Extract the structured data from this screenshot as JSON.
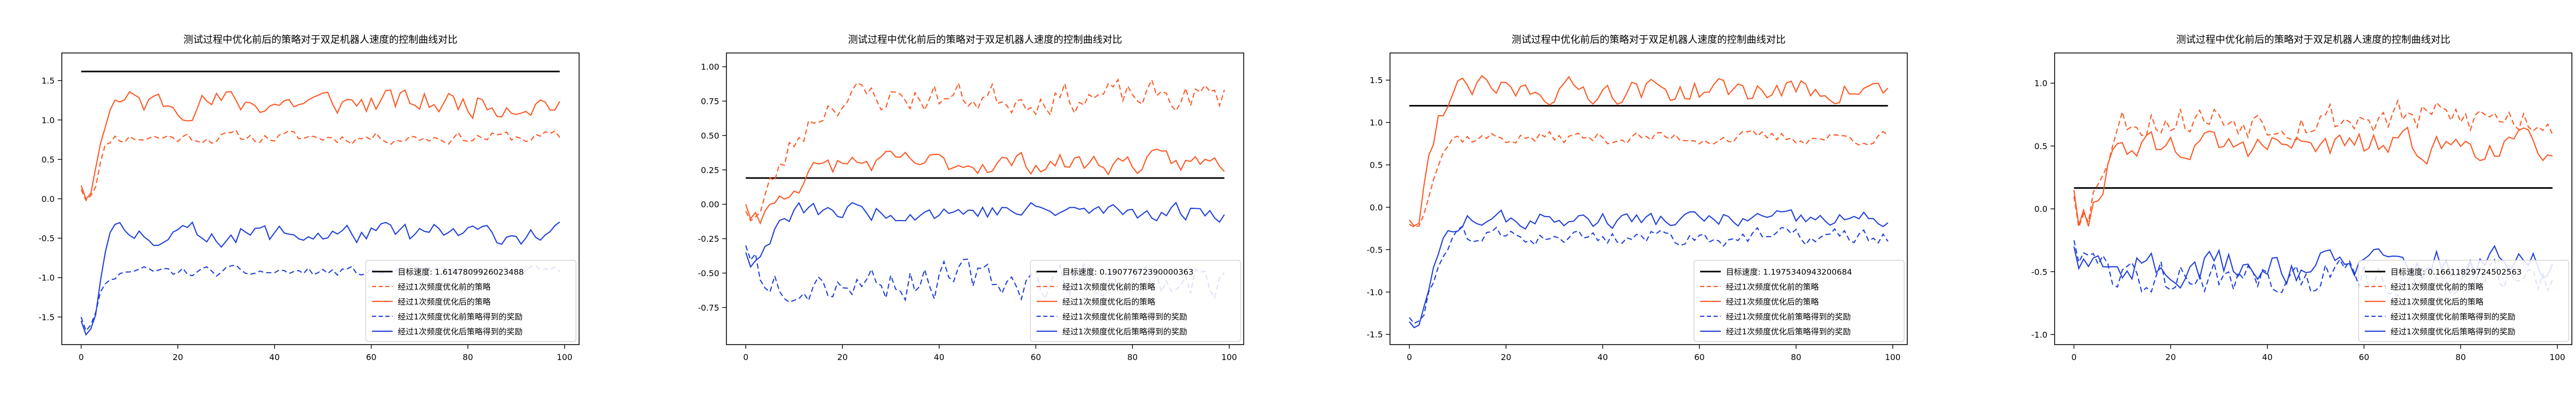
{
  "colors": {
    "target": "#000000",
    "before_opt": "#ff5722",
    "after_opt": "#ff5722",
    "before_reward": "#1f3fdc",
    "after_reward": "#1f3fdc"
  },
  "legend_labels": {
    "before_opt": "经过1次频度优化前的策略",
    "after_opt": "经过1次频度优化后的策略",
    "before_reward": "经过1次频度优化前策略得到的奖励",
    "after_reward": "经过1次频度优化后策略得到的奖励"
  },
  "chart_data": [
    {
      "type": "line",
      "title": "测试过程中优化前后的策略对于双足机器人速度的控制曲线对比",
      "target_label": "目标速度: 1.6147809926023488",
      "target": 1.6147809926023489,
      "xlim": [
        -4,
        103
      ],
      "ylim": [
        -1.85,
        1.85
      ],
      "xticks": [
        0,
        20,
        40,
        60,
        80,
        100
      ],
      "yticks": [
        -1.5,
        -1.0,
        -0.5,
        0.0,
        0.5,
        1.0,
        1.5
      ],
      "ytick_labels": [
        "-1.5",
        "-1.0",
        "-0.5",
        "0.0",
        "0.5",
        "1.0",
        "1.5"
      ],
      "legend": "lower-right",
      "gen": {
        "seed": 11,
        "opt_start": 0.12,
        "opt_before": 0.78,
        "opt_after": 1.22,
        "opt_rise": 5,
        "opt_noise_b": 0.07,
        "opt_noise_a": 0.15,
        "opt_dip": -0.08,
        "rew_start": -1.5,
        "rew_before": -0.93,
        "rew_after": -0.45,
        "rew_rise": 5,
        "rew_noise_b": 0.06,
        "rew_noise_a": 0.12,
        "rew_dip": -1.75
      }
    },
    {
      "type": "line",
      "title": "测试过程中优化前后的策略对于双足机器人速度的控制曲线对比",
      "target_label": "目标速度: 0.19077672390000363",
      "target": 0.19077672390000364,
      "xlim": [
        -4,
        103
      ],
      "ylim": [
        -1.02,
        1.1
      ],
      "xticks": [
        0,
        20,
        40,
        60,
        80,
        100
      ],
      "yticks": [
        -0.75,
        -0.5,
        -0.25,
        0.0,
        0.25,
        0.5,
        0.75,
        1.0
      ],
      "ytick_labels": [
        "-0.75",
        "-0.50",
        "-0.25",
        "0.00",
        "0.25",
        "0.50",
        "0.75",
        "1.00"
      ],
      "legend": "lower-right",
      "gen": {
        "seed": 23,
        "opt_start": -0.05,
        "opt_before": 0.78,
        "opt_after": 0.3,
        "opt_rise": 20,
        "opt_noise_b": 0.1,
        "opt_noise_a": 0.07,
        "opt_dip": -0.15,
        "rew_start": -0.3,
        "rew_before": -0.55,
        "rew_after": -0.05,
        "rew_rise": 10,
        "rew_noise_b": 0.12,
        "rew_noise_a": 0.06,
        "rew_dip": -0.45
      }
    },
    {
      "type": "line",
      "title": "测试过程中优化前后的策略对于双足机器人速度的控制曲线对比",
      "target_label": "目标速度: 1.1975340943200684",
      "target": 1.1975340943200683,
      "xlim": [
        -4,
        103
      ],
      "ylim": [
        -1.62,
        1.82
      ],
      "xticks": [
        0,
        20,
        40,
        60,
        80,
        100
      ],
      "yticks": [
        -1.5,
        -1.0,
        -0.5,
        0.0,
        0.5,
        1.0,
        1.5
      ],
      "ytick_labels": [
        "-1.5",
        "-1.0",
        "-0.5",
        "0.0",
        "0.5",
        "1.0",
        "1.5"
      ],
      "legend": "lower-right",
      "gen": {
        "seed": 37,
        "opt_start": -0.2,
        "opt_before": 0.82,
        "opt_after": 1.38,
        "opt_rise": 8,
        "opt_noise_b": 0.07,
        "opt_noise_a": 0.13,
        "opt_dip": -0.25,
        "rew_start": -1.3,
        "rew_before": -0.35,
        "rew_after": -0.15,
        "rew_rise": 10,
        "rew_noise_b": 0.09,
        "rew_noise_a": 0.09,
        "rew_dip": -1.4
      }
    },
    {
      "type": "line",
      "title": "测试过程中优化前后的策略对于双足机器人速度的控制曲线对比",
      "target_label": "目标速度: 0.16611829724502563",
      "target": 0.16611829724502564,
      "xlim": [
        -4,
        103
      ],
      "ylim": [
        -1.08,
        1.24
      ],
      "xticks": [
        0,
        20,
        40,
        60,
        80,
        100
      ],
      "yticks": [
        -1.0,
        -0.5,
        0.0,
        0.5,
        1.0
      ],
      "ytick_labels": [
        "-1.0",
        "-0.5",
        "0.0",
        "0.5",
        "1.0"
      ],
      "legend": "lower-right",
      "gen": {
        "seed": 53,
        "opt_start": 0.1,
        "opt_before": 0.72,
        "opt_after": 0.5,
        "opt_rise": 10,
        "opt_noise_b": 0.13,
        "opt_noise_a": 0.1,
        "opt_dip": -0.25,
        "rew_start": -0.25,
        "rew_before": -0.55,
        "rew_after": -0.45,
        "rew_rise": 6,
        "rew_noise_b": 0.13,
        "rew_noise_a": 0.12,
        "rew_dip": -0.5
      }
    }
  ]
}
